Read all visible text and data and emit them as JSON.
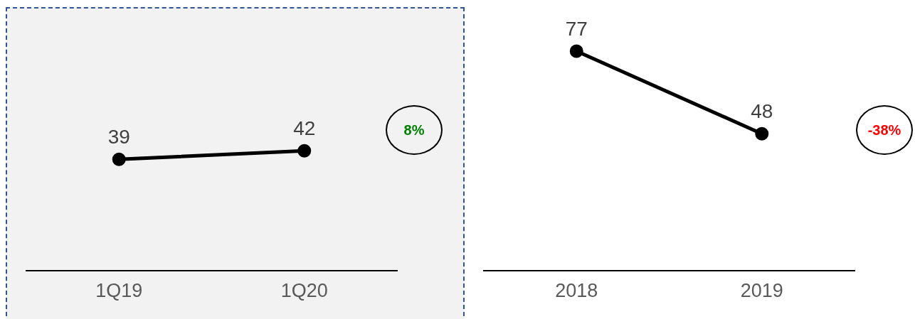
{
  "chart_data": [
    {
      "type": "line",
      "categories": [
        "1Q19",
        "1Q20"
      ],
      "series": [
        {
          "color": "#000000",
          "values": [
            39,
            42
          ]
        }
      ],
      "data_labels": true,
      "marker": "circle",
      "tick_labels": "x",
      "grid": false,
      "annotations": [
        "8%"
      ]
    },
    {
      "type": "line",
      "categories": [
        "2018",
        "2019"
      ],
      "series": [
        {
          "color": "#000000",
          "values": [
            77,
            48
          ]
        }
      ],
      "data_labels": true,
      "marker": "circle",
      "tick_labels": "x",
      "grid": false,
      "annotations": [
        "-38%"
      ]
    }
  ]
}
